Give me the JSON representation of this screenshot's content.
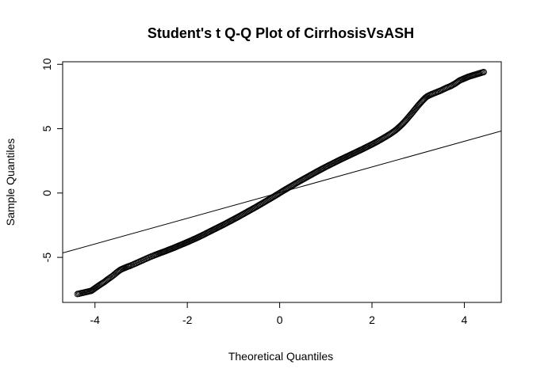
{
  "chart_data": {
    "type": "scatter",
    "title": "Student's t Q-Q Plot of CirrhosisVsASH",
    "xlabel": "Theoretical Quantiles",
    "ylabel": "Sample Quantiles",
    "xlim": [
      -4.7,
      4.8
    ],
    "ylim": [
      -8.5,
      10.2
    ],
    "x_ticks": [
      -4,
      -2,
      0,
      2,
      4
    ],
    "x_tick_labels": [
      "-4",
      "-2",
      "0",
      "2",
      "4"
    ],
    "y_ticks": [
      -5,
      0,
      5,
      10
    ],
    "y_tick_labels": [
      "-5",
      "0",
      "5",
      "10"
    ],
    "grid": false,
    "legend": "none",
    "reference_line": {
      "slope": 0.997,
      "intercept": 0.03
    },
    "series": [
      {
        "marker": "open-circle",
        "points": [
          [
            -4.38,
            -7.85
          ],
          [
            -4.08,
            -7.6
          ],
          [
            -3.9,
            -7.15
          ],
          [
            -3.8,
            -6.92
          ],
          [
            -3.72,
            -6.7
          ],
          [
            -3.66,
            -6.55
          ],
          [
            -3.61,
            -6.42
          ],
          [
            -3.57,
            -6.3
          ],
          [
            -3.53,
            -6.18
          ],
          [
            -3.49,
            -6.07
          ],
          [
            -3.45,
            -5.97
          ],
          [
            -3.41,
            -5.9
          ],
          [
            -3.37,
            -5.84
          ],
          [
            -3.33,
            -5.78
          ],
          [
            -3.29,
            -5.72
          ],
          [
            -3.25,
            -5.67
          ],
          [
            -3.2,
            -5.6
          ],
          [
            -3.15,
            -5.52
          ],
          [
            -3.1,
            -5.44
          ],
          [
            -3.05,
            -5.36
          ],
          [
            -3.0,
            -5.28
          ],
          [
            -2.95,
            -5.2
          ],
          [
            -2.9,
            -5.12
          ],
          [
            -2.85,
            -5.04
          ],
          [
            -2.8,
            -4.96
          ],
          [
            -2.75,
            -4.89
          ],
          [
            -2.7,
            -4.82
          ],
          [
            -2.6,
            -4.68
          ],
          [
            -2.5,
            -4.55
          ],
          [
            -2.4,
            -4.41
          ],
          [
            -2.3,
            -4.27
          ],
          [
            -2.2,
            -4.12
          ],
          [
            -2.1,
            -3.97
          ],
          [
            -2.0,
            -3.82
          ],
          [
            -1.9,
            -3.66
          ],
          [
            -1.8,
            -3.5
          ],
          [
            -1.7,
            -3.33
          ],
          [
            -1.6,
            -3.15
          ],
          [
            -1.5,
            -2.97
          ],
          [
            -1.4,
            -2.79
          ],
          [
            -1.3,
            -2.61
          ],
          [
            -1.2,
            -2.43
          ],
          [
            -1.1,
            -2.24
          ],
          [
            -1.0,
            -2.05
          ],
          [
            -0.9,
            -1.86
          ],
          [
            -0.8,
            -1.66
          ],
          [
            -0.7,
            -1.46
          ],
          [
            -0.6,
            -1.26
          ],
          [
            -0.5,
            -1.06
          ],
          [
            -0.4,
            -0.85
          ],
          [
            -0.3,
            -0.64
          ],
          [
            -0.2,
            -0.43
          ],
          [
            -0.1,
            -0.22
          ],
          [
            0.0,
            0.0
          ],
          [
            0.1,
            0.22
          ],
          [
            0.2,
            0.43
          ],
          [
            0.3,
            0.64
          ],
          [
            0.4,
            0.85
          ],
          [
            0.5,
            1.05
          ],
          [
            0.6,
            1.25
          ],
          [
            0.7,
            1.45
          ],
          [
            0.8,
            1.65
          ],
          [
            0.9,
            1.84
          ],
          [
            1.0,
            2.03
          ],
          [
            1.1,
            2.21
          ],
          [
            1.2,
            2.39
          ],
          [
            1.3,
            2.57
          ],
          [
            1.4,
            2.74
          ],
          [
            1.5,
            2.91
          ],
          [
            1.6,
            3.08
          ],
          [
            1.7,
            3.25
          ],
          [
            1.8,
            3.42
          ],
          [
            1.9,
            3.6
          ],
          [
            2.0,
            3.78
          ],
          [
            2.1,
            3.97
          ],
          [
            2.2,
            4.17
          ],
          [
            2.3,
            4.38
          ],
          [
            2.4,
            4.6
          ],
          [
            2.5,
            4.85
          ],
          [
            2.55,
            5.0
          ],
          [
            2.6,
            5.16
          ],
          [
            2.65,
            5.33
          ],
          [
            2.7,
            5.52
          ],
          [
            2.75,
            5.72
          ],
          [
            2.8,
            5.93
          ],
          [
            2.85,
            6.14
          ],
          [
            2.9,
            6.36
          ],
          [
            2.95,
            6.58
          ],
          [
            3.0,
            6.8
          ],
          [
            3.05,
            7.0
          ],
          [
            3.1,
            7.2
          ],
          [
            3.15,
            7.38
          ],
          [
            3.2,
            7.52
          ],
          [
            3.28,
            7.66
          ],
          [
            3.35,
            7.76
          ],
          [
            3.42,
            7.86
          ],
          [
            3.5,
            7.98
          ],
          [
            3.57,
            8.1
          ],
          [
            3.63,
            8.2
          ],
          [
            3.7,
            8.3
          ],
          [
            3.8,
            8.5
          ],
          [
            3.9,
            8.75
          ],
          [
            4.1,
            9.05
          ],
          [
            4.42,
            9.4
          ]
        ]
      }
    ]
  }
}
